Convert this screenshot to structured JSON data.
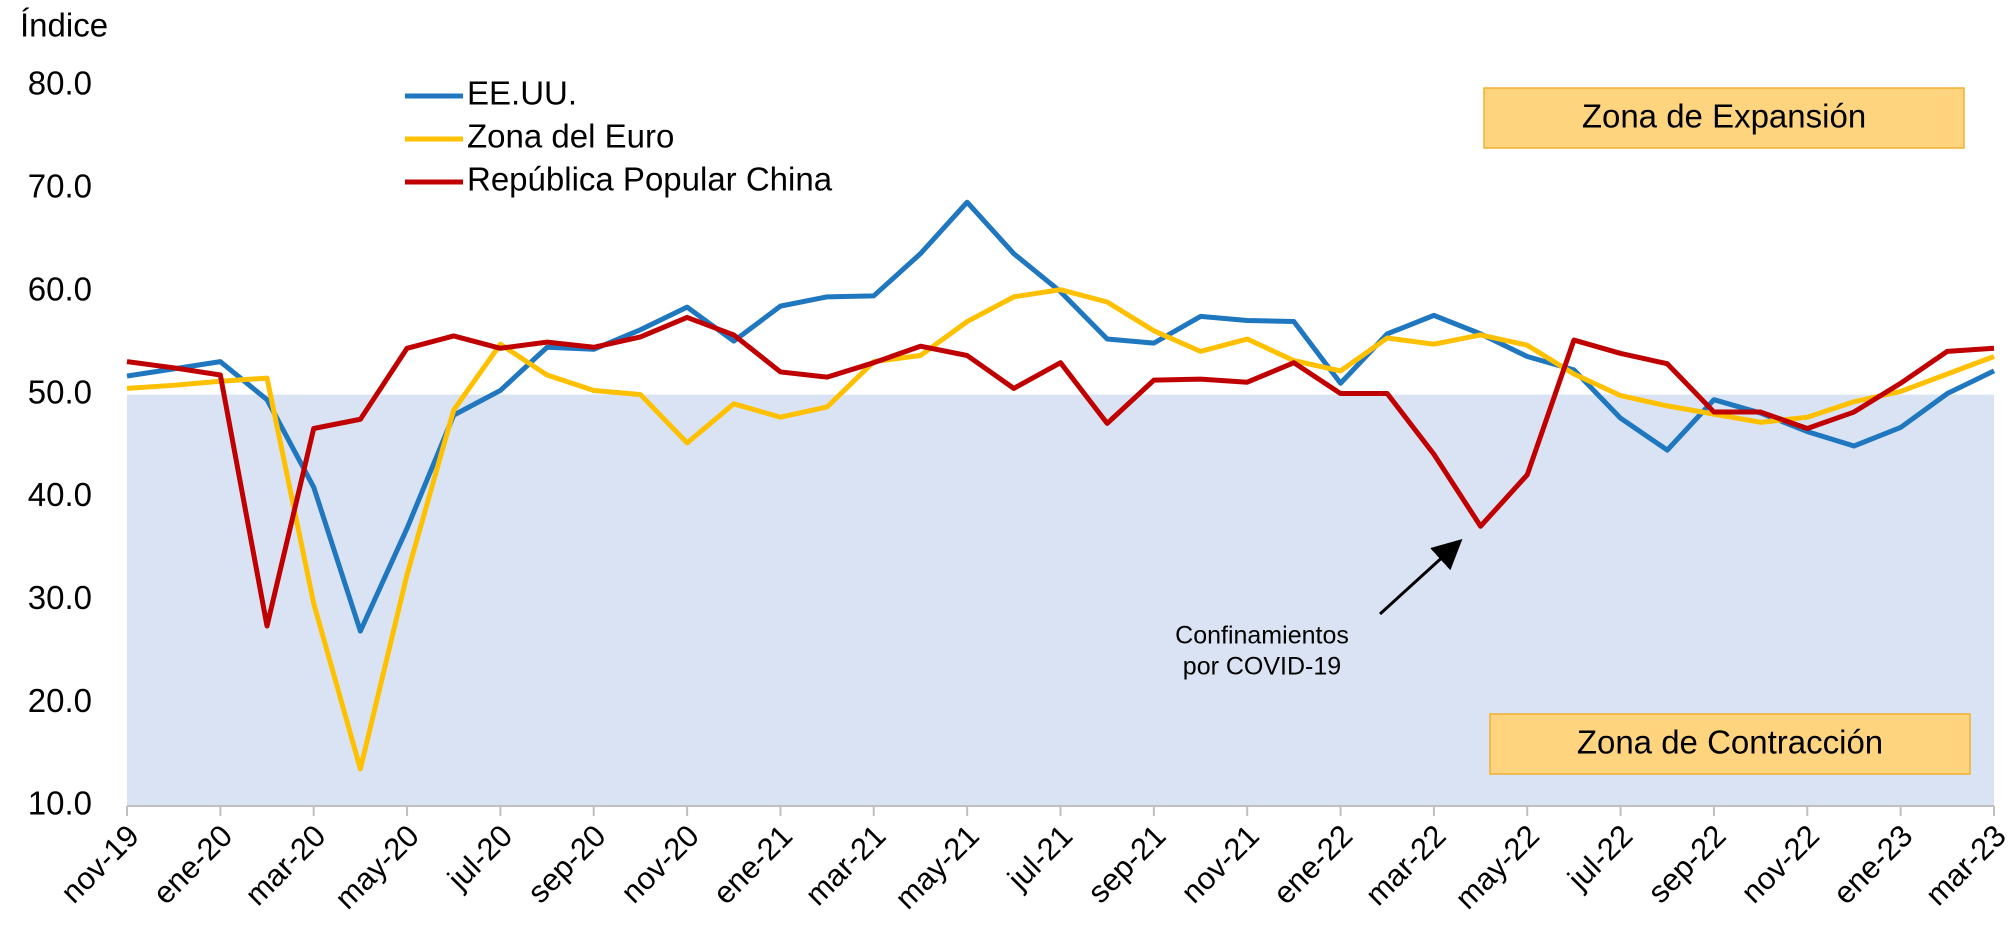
{
  "chart_data": {
    "type": "line",
    "y_axis_label": "Índice",
    "categories": [
      "nov-19",
      null,
      "ene-20",
      null,
      "mar-20",
      null,
      "may-20",
      null,
      "jul-20",
      null,
      "sep-20",
      null,
      "nov-20",
      null,
      "ene-21",
      null,
      "mar-21",
      null,
      "may-21",
      null,
      "jul-21",
      null,
      "sep-21",
      null,
      "nov-21",
      null,
      "ene-22",
      null,
      "mar-22",
      null,
      "may-22",
      null,
      "jul-22",
      null,
      "sep-22",
      null,
      "nov-22",
      null,
      "ene-23",
      null,
      "mar-23"
    ],
    "series": [
      {
        "name": "EE.UU.",
        "color": "#1f77c0",
        "values": [
          51.8,
          52.5,
          53.2,
          49.5,
          41.0,
          27.0,
          37.0,
          48.0,
          50.4,
          54.6,
          54.4,
          56.3,
          58.5,
          55.2,
          58.6,
          59.5,
          59.6,
          63.7,
          68.7,
          63.7,
          60.0,
          55.4,
          55.0,
          57.6,
          57.2,
          57.1,
          51.1,
          55.9,
          57.7,
          55.9,
          53.7,
          52.4,
          47.7,
          44.6,
          49.5,
          48.2,
          46.4,
          45.0,
          46.8,
          50.1,
          52.3
        ]
      },
      {
        "name": "Zona del Euro",
        "color": "#ffc000",
        "values": [
          50.6,
          50.9,
          51.3,
          51.6,
          29.7,
          13.6,
          32.5,
          48.5,
          54.9,
          51.9,
          50.4,
          50.0,
          45.3,
          49.1,
          47.8,
          48.8,
          53.2,
          53.8,
          57.1,
          59.5,
          60.2,
          59.0,
          56.2,
          54.2,
          55.4,
          53.3,
          52.3,
          55.5,
          54.9,
          55.8,
          54.8,
          52.0,
          49.9,
          48.9,
          48.1,
          47.3,
          47.8,
          49.3,
          50.3,
          52.0,
          53.7
        ]
      },
      {
        "name": "República Popular China",
        "color": "#c00000",
        "values": [
          53.2,
          52.6,
          51.9,
          27.5,
          46.7,
          47.6,
          54.5,
          55.7,
          54.5,
          55.1,
          54.6,
          55.6,
          57.5,
          55.8,
          52.2,
          51.7,
          53.1,
          54.7,
          53.8,
          50.6,
          53.1,
          47.2,
          51.4,
          51.5,
          51.2,
          53.1,
          50.1,
          50.1,
          44.2,
          37.2,
          42.2,
          55.3,
          54.0,
          53.0,
          48.3,
          48.3,
          46.7,
          48.3,
          51.1,
          54.2,
          54.5
        ]
      }
    ],
    "ylim": [
      10,
      80
    ],
    "yticks": [
      {
        "value": 10,
        "label": "10.0"
      },
      {
        "value": 20,
        "label": "20.0"
      },
      {
        "value": 30,
        "label": "30.0"
      },
      {
        "value": 40,
        "label": "40.0"
      },
      {
        "value": 50,
        "label": "50.0"
      },
      {
        "value": 60,
        "label": "60.0"
      },
      {
        "value": 70,
        "label": "70.0"
      },
      {
        "value": 80,
        "label": "80.0"
      }
    ],
    "contraction_band": [
      10,
      50
    ],
    "band_color": "#dae3f3",
    "annotations": {
      "expansion": "Zona de Expansión",
      "contraction": "Zona de Contracción",
      "covid": [
        "Confinamientos",
        "por COVID-19"
      ]
    }
  }
}
